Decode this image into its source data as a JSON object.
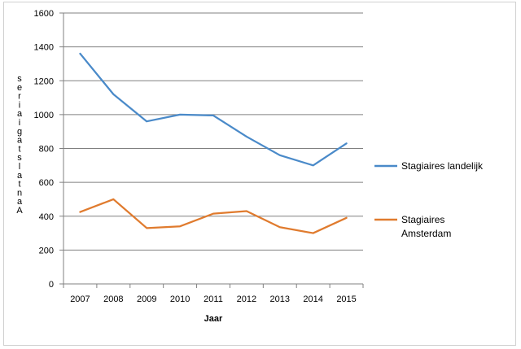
{
  "chart_data": {
    "type": "line",
    "categories": [
      "2007",
      "2008",
      "2009",
      "2010",
      "2011",
      "2012",
      "2013",
      "2014",
      "2015"
    ],
    "series": [
      {
        "name": "Stagiaires landelijk",
        "values": [
          1360,
          1120,
          960,
          1000,
          995,
          870,
          760,
          700,
          830
        ],
        "color": "#4a8ac9"
      },
      {
        "name": "Stagiaires Amsterdam",
        "values": [
          425,
          500,
          330,
          340,
          415,
          430,
          335,
          300,
          390
        ],
        "color": "#e07b2e"
      }
    ],
    "ylim": [
      0,
      1600
    ],
    "yticks": [
      0,
      200,
      400,
      600,
      800,
      1000,
      1200,
      1400,
      1600
    ],
    "xlabel": "Jaar",
    "ylabel": "Aantal stagiaires",
    "legend": {
      "position": "right"
    },
    "grid": "horizontal",
    "gridline_color": "#808080"
  }
}
